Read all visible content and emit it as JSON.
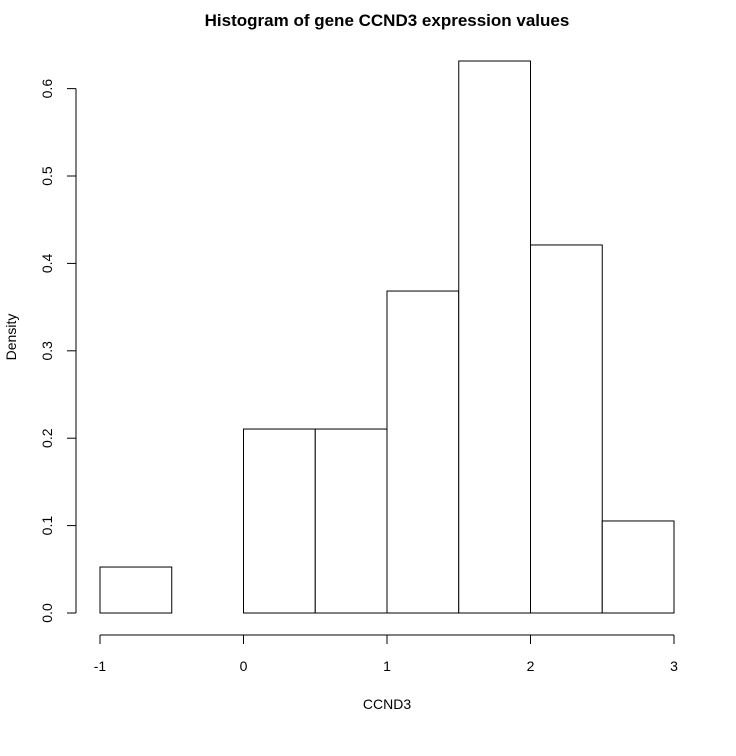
{
  "chart_data": {
    "type": "histogram",
    "title": "Histogram of gene CCND3 expression values",
    "xlabel": "CCND3",
    "ylabel": "Density",
    "bin_edges": [
      -1,
      -0.5,
      0,
      0.5,
      1,
      1.5,
      2,
      2.5,
      3
    ],
    "values": [
      0.0526,
      0.0,
      0.2105,
      0.2105,
      0.3684,
      0.6316,
      0.4211,
      0.1053
    ],
    "xlim": [
      -1,
      3
    ],
    "ylim": [
      0,
      0.6316
    ],
    "x_ticks": [
      -1,
      0,
      1,
      2,
      3
    ],
    "x_tick_labels": [
      "-1",
      "0",
      "1",
      "2",
      "3"
    ],
    "y_ticks": [
      0.0,
      0.1,
      0.2,
      0.3,
      0.4,
      0.5,
      0.6
    ],
    "y_tick_labels": [
      "0.0",
      "0.1",
      "0.2",
      "0.3",
      "0.4",
      "0.5",
      "0.6"
    ],
    "grid": false,
    "bar_fill": "#ffffff",
    "bar_stroke": "#000000"
  }
}
